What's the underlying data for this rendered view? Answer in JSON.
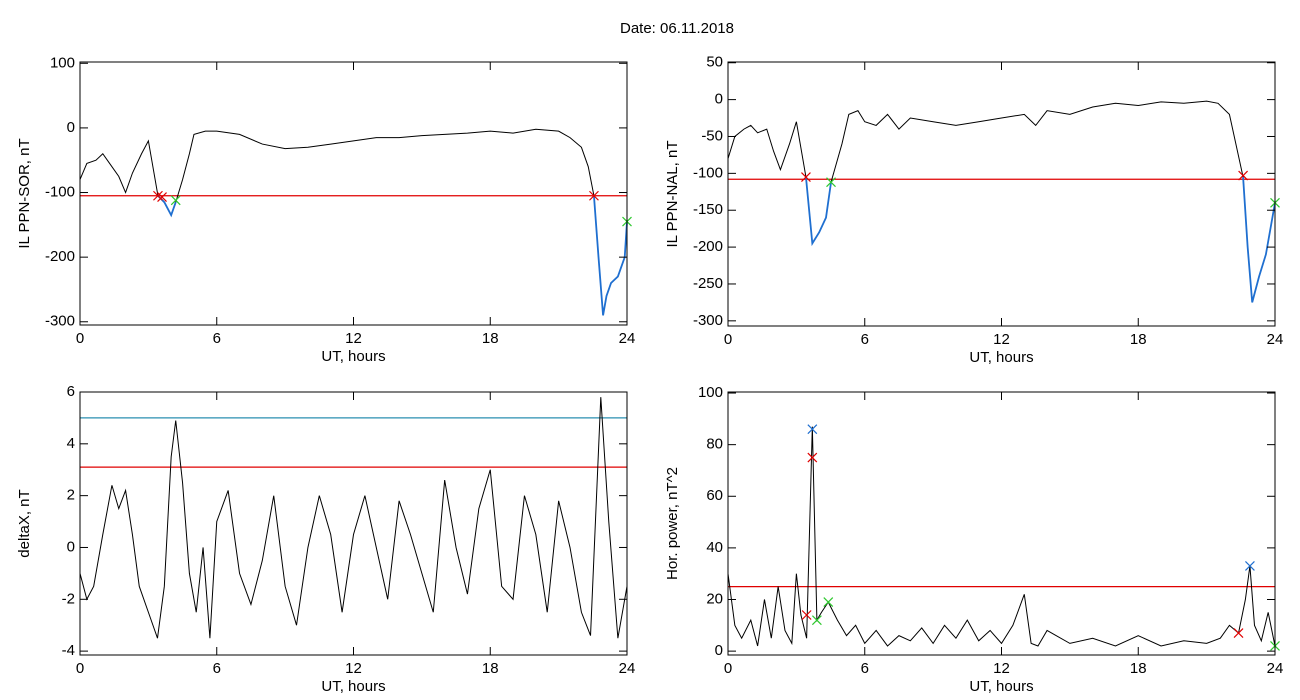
{
  "title": "Date:  06.11.2018",
  "chart_data": [
    {
      "type": "line",
      "ylabel": "IL PPN-SOR, nT",
      "xlabel": "UT, hours",
      "xlim": [
        0,
        24
      ],
      "xticks": [
        0,
        6,
        12,
        18,
        24
      ],
      "ylim": [
        -305,
        102
      ],
      "yticks": [
        100,
        0,
        -100,
        -200,
        -300
      ],
      "x": [
        0,
        0.3,
        0.7,
        1.0,
        1.3,
        1.7,
        2.0,
        2.3,
        2.7,
        3.0,
        3.42,
        3.7,
        4.0,
        4.2,
        4.5,
        4.8,
        5.0,
        5.5,
        6.0,
        7,
        8,
        9,
        10,
        11,
        12,
        13,
        14,
        15,
        16,
        17,
        18,
        19,
        20,
        21,
        21.5,
        22,
        22.3,
        22.55,
        22.75,
        22.95,
        23.1,
        23.3,
        23.6,
        23.9,
        24
      ],
      "series": [
        {
          "color": "#000000",
          "values": [
            -80,
            -55,
            -50,
            -40,
            -55,
            -75,
            -100,
            -70,
            -40,
            -20,
            -105,
            -115,
            -135,
            -115,
            -80,
            -40,
            -10,
            -5,
            -5,
            -10,
            -25,
            -32,
            -30,
            -25,
            -20,
            -15,
            -15,
            -12,
            -10,
            -8,
            -5,
            -8,
            -2,
            -5,
            -15,
            -30,
            -60,
            -105,
            -200,
            -290,
            -260,
            -240,
            -230,
            -200,
            -145
          ]
        },
        {
          "color": "#1f6fd0",
          "values": [
            null,
            null,
            null,
            null,
            null,
            null,
            null,
            null,
            null,
            null,
            -105,
            -115,
            -135,
            -115,
            null,
            null,
            null,
            null,
            null,
            null,
            null,
            null,
            null,
            null,
            null,
            null,
            null,
            null,
            null,
            null,
            null,
            null,
            null,
            null,
            null,
            null,
            null,
            -105,
            -200,
            -290,
            -260,
            -240,
            -230,
            -200,
            -145
          ]
        }
      ],
      "hlines": [
        {
          "value": -105,
          "color": "#e00000"
        }
      ],
      "markers": [
        {
          "x": 3.42,
          "y": -105,
          "color": "#e00000"
        },
        {
          "x": 3.6,
          "y": -107,
          "color": "#e00000"
        },
        {
          "x": 22.55,
          "y": -105,
          "color": "#e00000"
        },
        {
          "x": 4.2,
          "y": -112,
          "color": "#2ec82e"
        },
        {
          "x": 24,
          "y": -145,
          "color": "#2ec82e"
        }
      ]
    },
    {
      "type": "line",
      "ylabel": "IL PPN-NAL, nT",
      "xlabel": "UT, hours",
      "xlim": [
        0,
        24
      ],
      "xticks": [
        0,
        6,
        12,
        18,
        24
      ],
      "ylim": [
        -307,
        51
      ],
      "yticks": [
        50,
        0,
        -50,
        -100,
        -150,
        -200,
        -250,
        -300
      ],
      "x": [
        0,
        0.3,
        0.7,
        1.0,
        1.3,
        1.7,
        2.0,
        2.3,
        2.7,
        3.0,
        3.42,
        3.7,
        4.0,
        4.3,
        4.52,
        5.0,
        5.3,
        5.7,
        6.0,
        6.5,
        7,
        7.5,
        8,
        9,
        10,
        11,
        12,
        13,
        13.5,
        14,
        15,
        16,
        17,
        18,
        19,
        20,
        21,
        21.5,
        22,
        22.6,
        22.8,
        23.0,
        23.3,
        23.6,
        24
      ],
      "series": [
        {
          "color": "#000000",
          "values": [
            -80,
            -50,
            -40,
            -35,
            -45,
            -40,
            -70,
            -95,
            -60,
            -30,
            -105,
            -195,
            -180,
            -160,
            -112,
            -60,
            -20,
            -15,
            -30,
            -35,
            -20,
            -40,
            -25,
            -30,
            -35,
            -30,
            -25,
            -20,
            -35,
            -15,
            -20,
            -10,
            -5,
            -8,
            -3,
            -5,
            -2,
            -5,
            -20,
            -105,
            -200,
            -275,
            -240,
            -210,
            -140
          ]
        },
        {
          "color": "#1f6fd0",
          "values": [
            null,
            null,
            null,
            null,
            null,
            null,
            null,
            null,
            null,
            null,
            -105,
            -195,
            -180,
            -160,
            -112,
            null,
            null,
            null,
            null,
            null,
            null,
            null,
            null,
            null,
            null,
            null,
            null,
            null,
            null,
            null,
            null,
            null,
            null,
            null,
            null,
            null,
            null,
            null,
            null,
            -105,
            -200,
            -275,
            -240,
            -210,
            -140
          ]
        }
      ],
      "hlines": [
        {
          "value": -108,
          "color": "#e00000"
        }
      ],
      "markers": [
        {
          "x": 3.42,
          "y": -105,
          "color": "#e00000"
        },
        {
          "x": 22.6,
          "y": -103,
          "color": "#e00000"
        },
        {
          "x": 4.52,
          "y": -112,
          "color": "#2ec82e"
        },
        {
          "x": 24,
          "y": -140,
          "color": "#2ec82e"
        }
      ]
    },
    {
      "type": "line",
      "ylabel": "deltaX, nT",
      "xlabel": "UT, hours",
      "xlim": [
        0,
        24
      ],
      "xticks": [
        0,
        6,
        12,
        18,
        24
      ],
      "ylim": [
        -4.15,
        6
      ],
      "yticks": [
        6,
        4,
        2,
        0,
        -2,
        -4
      ],
      "x": [
        0,
        0.3,
        0.6,
        1.0,
        1.4,
        1.7,
        2.0,
        2.3,
        2.6,
        3.0,
        3.4,
        3.7,
        4.0,
        4.2,
        4.5,
        4.8,
        5.1,
        5.4,
        5.7,
        6.0,
        6.5,
        7.0,
        7.5,
        8.0,
        8.5,
        9.0,
        9.5,
        10.0,
        10.5,
        11.0,
        11.5,
        12.0,
        12.5,
        13.0,
        13.5,
        14.0,
        14.5,
        15.0,
        15.5,
        16.0,
        16.5,
        17.0,
        17.5,
        18.0,
        18.5,
        19.0,
        19.5,
        20.0,
        20.5,
        21.0,
        21.5,
        22.0,
        22.4,
        22.85,
        23.2,
        23.6,
        24
      ],
      "series": [
        {
          "color": "#000000",
          "values": [
            -1,
            -2,
            -1.5,
            0.5,
            2.4,
            1.5,
            2.2,
            0.5,
            -1.5,
            -2.5,
            -3.5,
            -1.5,
            3.5,
            4.9,
            2.5,
            -1,
            -2.5,
            0,
            -3.5,
            1,
            2.2,
            -1,
            -2.2,
            -0.5,
            2.0,
            -1.5,
            -3.0,
            0,
            2.0,
            0.5,
            -2.5,
            0.5,
            2.0,
            0,
            -2.0,
            1.8,
            0.5,
            -1,
            -2.5,
            2.6,
            0,
            -1.8,
            1.5,
            3.0,
            -1.5,
            -2.0,
            2.0,
            0.5,
            -2.5,
            1.8,
            0,
            -2.5,
            -3.4,
            5.8,
            1,
            -3.5,
            -1.5
          ]
        }
      ],
      "hlines": [
        {
          "value": 5,
          "color": "#2a8fb0"
        },
        {
          "value": 3.1,
          "color": "#e00000"
        }
      ],
      "markers": []
    },
    {
      "type": "line",
      "ylabel": "Hor. power, nT^2",
      "xlabel": "UT, hours",
      "xlim": [
        0,
        24
      ],
      "xticks": [
        0,
        6,
        12,
        18,
        24
      ],
      "ylim": [
        -1.5,
        100.4
      ],
      "yticks": [
        100,
        80,
        60,
        40,
        20,
        0
      ],
      "x": [
        0,
        0.3,
        0.6,
        1.0,
        1.3,
        1.6,
        1.9,
        2.2,
        2.5,
        2.8,
        3.0,
        3.2,
        3.45,
        3.7,
        3.9,
        4.1,
        4.4,
        4.8,
        5.2,
        5.6,
        6.0,
        6.5,
        7.0,
        7.5,
        8.0,
        8.5,
        9.0,
        9.5,
        10.0,
        10.5,
        11.0,
        11.5,
        12.0,
        12.5,
        13.0,
        13.3,
        13.6,
        14.0,
        15.0,
        16.0,
        17.0,
        18.0,
        19.0,
        20.0,
        21.0,
        21.6,
        22.0,
        22.4,
        22.7,
        22.9,
        23.1,
        23.4,
        23.7,
        24
      ],
      "series": [
        {
          "color": "#000000",
          "values": [
            30,
            10,
            5,
            12,
            2,
            20,
            5,
            25,
            8,
            3,
            30,
            14,
            5,
            87,
            12,
            15,
            19,
            12,
            6,
            10,
            3,
            8,
            2,
            6,
            4,
            9,
            3,
            10,
            5,
            12,
            4,
            8,
            3,
            10,
            22,
            3,
            2,
            8,
            3,
            5,
            2,
            6,
            2,
            4,
            3,
            5,
            10,
            7,
            20,
            33,
            10,
            4,
            15,
            2
          ]
        }
      ],
      "hlines": [
        {
          "value": 25,
          "color": "#e00000"
        }
      ],
      "markers": [
        {
          "x": 3.7,
          "y": 86,
          "color": "#1f6fd0"
        },
        {
          "x": 22.9,
          "y": 33,
          "color": "#1f6fd0"
        },
        {
          "x": 3.7,
          "y": 75,
          "color": "#e00000"
        },
        {
          "x": 3.45,
          "y": 14,
          "color": "#e00000"
        },
        {
          "x": 22.4,
          "y": 7,
          "color": "#e00000"
        },
        {
          "x": 3.9,
          "y": 12,
          "color": "#2ec82e"
        },
        {
          "x": 4.4,
          "y": 19,
          "color": "#2ec82e"
        },
        {
          "x": 24,
          "y": 2,
          "color": "#2ec82e"
        }
      ]
    }
  ]
}
